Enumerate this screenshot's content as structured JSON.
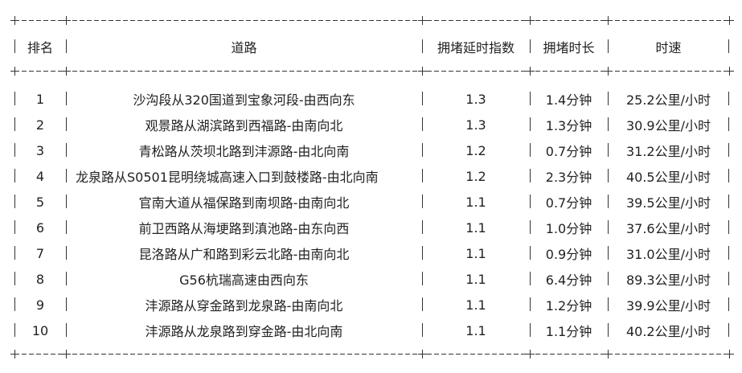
{
  "table": {
    "headers": [
      "排名",
      "道路",
      "拥堵延时指数",
      "拥堵时长",
      "时速"
    ],
    "rows": [
      [
        "1",
        "沙沟段从320国道到宝象河段-由西向东",
        "1.3",
        "1.4分钟",
        "25.2公里/小时"
      ],
      [
        "2",
        "观景路从湖滨路到西福路-由南向北",
        "1.3",
        "1.3分钟",
        "30.9公里/小时"
      ],
      [
        "3",
        "青松路从茨坝北路到沣源路-由北向南",
        "1.2",
        "0.7分钟",
        "31.2公里/小时"
      ],
      [
        "4",
        "龙泉路从S0501昆明绕城高速入口到鼓楼路-由北向南",
        "1.2",
        "2.3分钟",
        "40.5公里/小时"
      ],
      [
        "5",
        "官南大道从福保路到南坝路-由南向北",
        "1.1",
        "0.7分钟",
        "39.5公里/小时"
      ],
      [
        "6",
        "前卫西路从海埂路到滇池路-由东向西",
        "1.1",
        "1.0分钟",
        "37.6公里/小时"
      ],
      [
        "7",
        "昆洛路从广和路到彩云北路-由南向北",
        "1.1",
        "0.9分钟",
        "31.0公里/小时"
      ],
      [
        "8",
        "G56杭瑞高速由西向东",
        "1.1",
        "6.4分钟",
        "89.3公里/小时"
      ],
      [
        "9",
        "沣源路从穿金路到龙泉路-由南向北",
        "1.1",
        "1.2分钟",
        "39.9公里/小时"
      ],
      [
        "10",
        "沣源路从龙泉路到穿金路-由北向南",
        "1.1",
        "1.1分钟",
        "40.2公里/小时"
      ]
    ]
  }
}
